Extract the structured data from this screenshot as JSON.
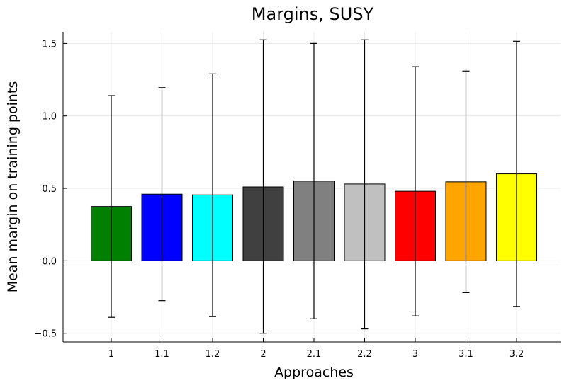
{
  "chart_data": {
    "type": "bar",
    "title": "Margins, SUSY",
    "xlabel": "Approaches",
    "ylabel": "Mean margin on training points",
    "categories": [
      "1",
      "1.1",
      "1.2",
      "2",
      "2.1",
      "2.2",
      "3",
      "3.1",
      "3.2"
    ],
    "values": [
      0.375,
      0.46,
      0.455,
      0.51,
      0.55,
      0.53,
      0.48,
      0.545,
      0.6
    ],
    "error_low": [
      -0.39,
      -0.275,
      -0.385,
      -0.5,
      -0.4,
      -0.47,
      -0.38,
      -0.22,
      -0.315
    ],
    "error_high": [
      1.14,
      1.195,
      1.29,
      1.525,
      1.5,
      1.525,
      1.34,
      1.31,
      1.515
    ],
    "colors": [
      "#008000",
      "#0000ff",
      "#00ffff",
      "#404040",
      "#808080",
      "#c0c0c0",
      "#ff0000",
      "#ffa500",
      "#ffff00"
    ],
    "yticks": [
      "-0.5",
      "0.0",
      "0.5",
      "1.0",
      "1.5"
    ],
    "ylim": [
      -0.56,
      1.58
    ],
    "grid": true,
    "legend": "none"
  }
}
